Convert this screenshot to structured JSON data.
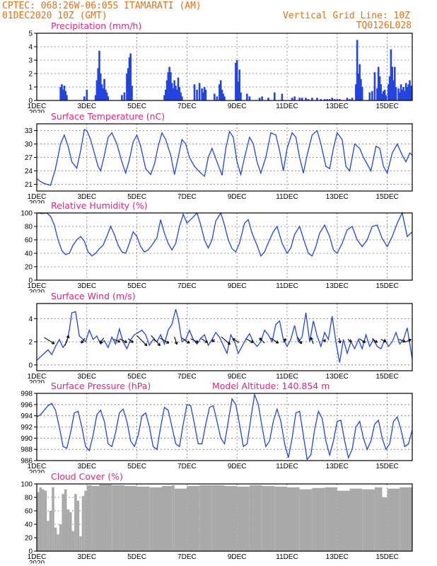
{
  "header": {
    "line1": "CPTEC:   068:26W-06:05S  ITAMARATI (AM)",
    "line2_left": "01DEC2020 10Z (GMT)",
    "line2_right": "Vertical Grid Line: 10Z",
    "line3_right": "TQ0126L028"
  },
  "x_axis": {
    "days": [
      1,
      16
    ],
    "tick_days": [
      1,
      3,
      5,
      7,
      9,
      11,
      13,
      15
    ],
    "tick_labels": [
      "1DEC",
      "3DEC",
      "5DEC",
      "7DEC",
      "9DEC",
      "11DEC",
      "13DEC",
      "15DEC"
    ],
    "year_label": "2020"
  },
  "colors": {
    "header": "#e0701c",
    "panel_title": "#e0267e",
    "series": "#2345dd",
    "cloud": "#a9a9a9",
    "arrow": "#000000"
  },
  "chart_data": [
    {
      "type": "bar",
      "title": "Precipitation (mm/h)",
      "ylim": [
        0,
        5
      ],
      "yticks": [
        0,
        1,
        2,
        3,
        4,
        5
      ],
      "x": [
        1.95,
        2.0,
        2.05,
        2.1,
        2.15,
        2.2,
        2.9,
        3.0,
        3.35,
        3.4,
        3.45,
        3.5,
        3.55,
        3.6,
        3.65,
        3.7,
        3.75,
        3.8,
        3.85,
        4.4,
        4.5,
        4.6,
        4.65,
        4.7,
        4.75,
        4.8,
        6.1,
        6.15,
        6.2,
        6.25,
        6.3,
        6.35,
        6.4,
        6.45,
        6.5,
        6.55,
        6.6,
        6.65,
        6.7,
        6.75,
        6.8,
        7.3,
        7.4,
        7.5,
        7.6,
        7.65,
        7.7,
        7.75,
        8.1,
        8.2,
        8.3,
        8.35,
        8.4,
        8.45,
        8.5,
        8.95,
        9.0,
        9.05,
        9.1,
        9.15,
        9.4,
        9.5,
        9.9,
        10.0,
        10.25,
        10.5,
        10.8,
        11.2,
        11.3,
        11.5,
        11.6,
        11.75,
        11.85,
        12.0,
        12.2,
        12.35,
        12.5,
        12.6,
        12.7,
        12.8,
        12.9,
        13.0,
        13.1,
        13.4,
        13.5,
        13.6,
        13.75,
        13.8,
        13.85,
        13.9,
        13.95,
        14.0,
        14.3,
        14.4,
        14.5,
        14.6,
        14.65,
        14.7,
        14.75,
        14.8,
        14.85,
        14.9,
        14.95,
        15.05,
        15.1,
        15.15,
        15.2,
        15.25,
        15.3,
        15.35,
        15.45,
        15.5,
        15.55,
        15.6,
        15.65,
        15.7,
        15.75,
        15.8,
        15.85,
        15.9,
        15.95
      ],
      "values": [
        1.0,
        1.2,
        0.8,
        1.1,
        0.7,
        0.4,
        0.3,
        0.8,
        0.4,
        1.5,
        2.4,
        3.7,
        2.0,
        1.2,
        0.9,
        1.6,
        0.8,
        0.6,
        0.3,
        0.4,
        0.6,
        2.0,
        2.4,
        3.2,
        3.5,
        1.1,
        0.4,
        0.8,
        1.5,
        2.1,
        2.5,
        2.1,
        1.3,
        0.9,
        1.5,
        1.1,
        0.8,
        1.7,
        1.0,
        0.6,
        0.3,
        1.2,
        0.8,
        1.3,
        0.9,
        0.6,
        1.0,
        0.8,
        0.5,
        0.3,
        1.2,
        1.5,
        0.8,
        0.5,
        0.3,
        2.8,
        3.0,
        1.4,
        2.3,
        0.6,
        0.5,
        0.3,
        0.2,
        0.3,
        0.2,
        0.6,
        0.5,
        0.2,
        0.3,
        0.2,
        0.2,
        0.2,
        0.1,
        0.2,
        0.2,
        0.1,
        0.1,
        0.1,
        0.1,
        0.2,
        0.1,
        0.1,
        0.1,
        0.2,
        0.1,
        0.2,
        1.2,
        4.5,
        2.0,
        2.7,
        1.6,
        1.0,
        0.6,
        0.7,
        2.1,
        0.9,
        2.5,
        1.8,
        1.2,
        0.5,
        0.7,
        0.8,
        0.4,
        1.2,
        1.8,
        3.8,
        2.5,
        1.5,
        2.5,
        1.0,
        0.9,
        0.6,
        1.2,
        0.8,
        1.0,
        0.7,
        1.3,
        1.0,
        1.2,
        1.5,
        1.1
      ]
    },
    {
      "type": "line",
      "title": "Surface Temperature (nC)",
      "ylim": [
        19.5,
        34.5
      ],
      "yticks": [
        21,
        24,
        27,
        30,
        33
      ],
      "x": [
        1.0,
        1.1,
        1.25,
        1.4,
        1.55,
        1.75,
        1.95,
        2.1,
        2.25,
        2.4,
        2.6,
        2.75,
        2.9,
        3.0,
        3.15,
        3.3,
        3.45,
        3.55,
        3.7,
        3.85,
        4.0,
        4.2,
        4.4,
        4.55,
        4.7,
        4.85,
        5.0,
        5.15,
        5.35,
        5.55,
        5.7,
        5.85,
        6.0,
        6.15,
        6.35,
        6.5,
        6.65,
        6.8,
        6.95,
        7.1,
        7.3,
        7.55,
        7.7,
        7.85,
        8.0,
        8.2,
        8.4,
        8.55,
        8.7,
        8.85,
        9.0,
        9.15,
        9.3,
        9.5,
        9.65,
        9.8,
        9.95,
        10.15,
        10.35,
        10.55,
        10.7,
        10.85,
        11.0,
        11.2,
        11.35,
        11.5,
        11.65,
        11.8,
        12.0,
        12.2,
        12.35,
        12.55,
        12.7,
        12.85,
        13.0,
        13.2,
        13.35,
        13.5,
        13.7,
        13.9,
        14.05,
        14.2,
        14.35,
        14.55,
        14.7,
        14.85,
        15.0,
        15.2,
        15.4,
        15.6,
        15.75,
        15.9,
        16.0
      ],
      "values": [
        22.3,
        21.8,
        21.3,
        21.0,
        20.8,
        24.5,
        30.0,
        32.0,
        29.5,
        26.0,
        24.6,
        28.5,
        33.2,
        33.0,
        31.0,
        28.0,
        25.0,
        24.0,
        27.5,
        31.5,
        32.5,
        30.0,
        26.0,
        23.5,
        26.5,
        30.5,
        32.0,
        29.5,
        24.5,
        23.2,
        25.5,
        29.5,
        32.5,
        31.0,
        27.5,
        23.2,
        27.0,
        31.0,
        30.0,
        27.0,
        25.0,
        23.5,
        22.8,
        27.0,
        29.0,
        26.0,
        23.0,
        29.0,
        32.8,
        31.5,
        26.0,
        23.2,
        27.0,
        31.5,
        30.0,
        26.0,
        23.5,
        27.0,
        32.5,
        32.0,
        28.5,
        24.0,
        29.0,
        32.5,
        31.5,
        27.0,
        23.5,
        27.5,
        32.0,
        33.0,
        30.0,
        25.0,
        24.5,
        29.0,
        32.5,
        31.0,
        25.0,
        24.0,
        30.0,
        29.0,
        27.0,
        25.5,
        24.0,
        29.5,
        29.0,
        25.0,
        23.5,
        28.0,
        30.0,
        27.5,
        26.0,
        28.0,
        27.5
      ]
    },
    {
      "type": "line",
      "title": "Relative Humidity (%)",
      "ylim": [
        0,
        100
      ],
      "yticks": [
        0,
        20,
        40,
        60,
        80,
        100
      ],
      "x": [
        1.0,
        1.2,
        1.4,
        1.55,
        1.7,
        1.85,
        2.0,
        2.15,
        2.3,
        2.45,
        2.6,
        2.75,
        2.9,
        3.05,
        3.2,
        3.35,
        3.5,
        3.65,
        3.8,
        3.95,
        4.1,
        4.25,
        4.4,
        4.55,
        4.7,
        4.85,
        5.0,
        5.15,
        5.3,
        5.45,
        5.6,
        5.8,
        5.95,
        6.1,
        6.25,
        6.4,
        6.55,
        6.7,
        6.85,
        7.0,
        7.2,
        7.4,
        7.55,
        7.7,
        7.85,
        8.0,
        8.15,
        8.35,
        8.5,
        8.65,
        8.8,
        8.95,
        9.1,
        9.3,
        9.45,
        9.6,
        9.8,
        9.95,
        10.1,
        10.3,
        10.45,
        10.6,
        10.8,
        11.0,
        11.15,
        11.3,
        11.5,
        11.65,
        11.85,
        12.0,
        12.15,
        12.3,
        12.5,
        12.7,
        12.85,
        13.0,
        13.2,
        13.4,
        13.6,
        13.8,
        14.0,
        14.2,
        14.4,
        14.6,
        14.8,
        15.0,
        15.2,
        15.4,
        15.6,
        15.8,
        16.0
      ],
      "values": [
        100,
        99,
        100,
        95,
        82,
        60,
        44,
        38,
        40,
        52,
        60,
        65,
        58,
        42,
        36,
        40,
        47,
        52,
        65,
        80,
        68,
        52,
        42,
        40,
        55,
        72,
        65,
        50,
        42,
        45,
        52,
        63,
        90,
        70,
        55,
        45,
        55,
        80,
        98,
        85,
        92,
        100,
        82,
        60,
        48,
        60,
        88,
        100,
        82,
        60,
        47,
        42,
        55,
        85,
        90,
        70,
        52,
        36,
        42,
        60,
        72,
        80,
        55,
        40,
        48,
        68,
        80,
        62,
        40,
        36,
        50,
        70,
        82,
        65,
        45,
        40,
        55,
        75,
        80,
        60,
        50,
        60,
        80,
        82,
        62,
        50,
        65,
        85,
        100,
        65,
        72
      ]
    },
    {
      "type": "line",
      "title": "Surface Wind (m/s)",
      "ylim": [
        -0.5,
        5.3
      ],
      "yticks": [
        0,
        2,
        4
      ],
      "x": [
        1.0,
        1.15,
        1.3,
        1.45,
        1.6,
        1.75,
        1.9,
        2.05,
        2.2,
        2.3,
        2.4,
        2.55,
        2.7,
        2.85,
        2.95,
        3.1,
        3.25,
        3.4,
        3.55,
        3.7,
        3.85,
        4.0,
        4.15,
        4.3,
        4.45,
        4.6,
        4.75,
        4.9,
        5.05,
        5.2,
        5.35,
        5.5,
        5.65,
        5.8,
        5.95,
        6.1,
        6.25,
        6.4,
        6.55,
        6.65,
        6.8,
        6.95,
        7.1,
        7.25,
        7.4,
        7.55,
        7.7,
        7.85,
        8.0,
        8.15,
        8.3,
        8.45,
        8.6,
        8.75,
        8.9,
        9.05,
        9.2,
        9.35,
        9.5,
        9.65,
        9.8,
        9.95,
        10.1,
        10.25,
        10.4,
        10.55,
        10.7,
        10.85,
        11.0,
        11.15,
        11.3,
        11.45,
        11.6,
        11.75,
        11.9,
        12.05,
        12.2,
        12.35,
        12.5,
        12.65,
        12.8,
        12.95,
        13.1,
        13.25,
        13.4,
        13.55,
        13.7,
        13.85,
        14.0,
        14.15,
        14.3,
        14.45,
        14.6,
        14.75,
        14.9,
        15.05,
        15.2,
        15.35,
        15.5,
        15.65,
        15.8,
        16.0
      ],
      "values": [
        0.4,
        0.7,
        1.0,
        1.3,
        0.9,
        1.6,
        2.2,
        1.5,
        2.0,
        3.0,
        4.5,
        4.6,
        2.5,
        2.2,
        2.0,
        3.0,
        2.2,
        2.5,
        1.8,
        2.1,
        1.5,
        2.4,
        1.8,
        3.1,
        2.0,
        1.4,
        2.2,
        2.6,
        2.8,
        3.0,
        2.6,
        1.7,
        2.2,
        2.0,
        2.6,
        1.8,
        3.0,
        3.5,
        4.8,
        4.0,
        2.0,
        2.2,
        3.0,
        2.2,
        1.8,
        2.3,
        2.6,
        1.7,
        2.2,
        2.8,
        2.4,
        1.7,
        1.0,
        2.6,
        2.0,
        1.0,
        1.6,
        2.2,
        2.7,
        2.0,
        1.6,
        2.0,
        3.0,
        2.6,
        2.0,
        3.5,
        3.8,
        2.2,
        1.6,
        2.2,
        3.4,
        2.0,
        2.4,
        4.5,
        2.0,
        3.8,
        2.5,
        1.6,
        2.8,
        2.2,
        4.2,
        2.0,
        0.2,
        2.2,
        1.0,
        2.0,
        1.4,
        2.2,
        1.4,
        2.6,
        1.6,
        2.2,
        1.6,
        1.4,
        2.2,
        1.6,
        2.0,
        2.8,
        1.8,
        2.2,
        3.2,
        0.5
      ],
      "vectors": {
        "x": [
          1.5,
          2.2,
          2.85,
          3.6,
          4.2,
          4.45,
          4.75,
          5.2,
          5.75,
          6.1,
          6.55,
          6.95,
          7.3,
          7.7,
          8.05,
          8.55,
          8.95,
          9.5,
          10.0,
          10.5,
          10.9,
          11.5,
          12.0,
          12.5,
          13.1,
          13.5,
          14.0,
          14.5,
          14.85,
          15.6,
          15.85
        ],
        "u": [
          0.8,
          0.3,
          -0.3,
          -0.3,
          0.5,
          0.6,
          0.4,
          0.8,
          0.7,
          0.7,
          0.2,
          0.6,
          0.6,
          0.5,
          -0.2,
          0.7,
          -0.5,
          0.6,
          -0.4,
          0.6,
          0.2,
          0.3,
          -0.2,
          0.1,
          0.1,
          0.3,
          0.5,
          0.4,
          0.4,
          0.5,
          0.4
        ],
        "v": [
          -0.5,
          0.8,
          -0.4,
          -0.4,
          -0.2,
          -0.3,
          -0.3,
          -0.8,
          -0.8,
          -0.4,
          -0.6,
          -0.4,
          -0.3,
          -0.3,
          -0.2,
          -0.6,
          0.3,
          -0.3,
          0.4,
          -0.4,
          0.3,
          -0.5,
          0.5,
          0.2,
          -0.4,
          -0.2,
          -0.3,
          -0.3,
          -0.2,
          -0.2,
          0.2
        ]
      }
    },
    {
      "type": "line",
      "title": "Surface Pressure (hPa)",
      "annotation": "Model Altitude: 140.854 m",
      "ylim": [
        986,
        998
      ],
      "yticks": [
        986,
        988,
        990,
        992,
        994,
        996,
        998
      ],
      "x": [
        1.0,
        1.15,
        1.3,
        1.45,
        1.6,
        1.75,
        1.9,
        2.05,
        2.2,
        2.35,
        2.5,
        2.65,
        2.8,
        2.95,
        3.1,
        3.25,
        3.4,
        3.55,
        3.7,
        3.85,
        4.0,
        4.15,
        4.3,
        4.45,
        4.6,
        4.75,
        4.9,
        5.05,
        5.2,
        5.35,
        5.5,
        5.65,
        5.8,
        5.95,
        6.1,
        6.25,
        6.4,
        6.55,
        6.7,
        6.85,
        7.0,
        7.15,
        7.3,
        7.45,
        7.6,
        7.75,
        7.9,
        8.05,
        8.2,
        8.35,
        8.5,
        8.65,
        8.8,
        8.95,
        9.1,
        9.25,
        9.4,
        9.55,
        9.7,
        9.85,
        10.0,
        10.15,
        10.3,
        10.45,
        10.6,
        10.75,
        10.9,
        11.05,
        11.2,
        11.35,
        11.5,
        11.65,
        11.8,
        11.95,
        12.1,
        12.25,
        12.4,
        12.55,
        12.7,
        12.85,
        13.0,
        13.15,
        13.3,
        13.45,
        13.6,
        13.75,
        13.9,
        14.05,
        14.2,
        14.35,
        14.5,
        14.65,
        14.8,
        14.95,
        15.1,
        15.25,
        15.4,
        15.55,
        15.7,
        15.85,
        16.0
      ],
      "values": [
        993.8,
        994.2,
        995.0,
        995.8,
        996.2,
        995.0,
        992.0,
        988.5,
        988.2,
        991.0,
        994.5,
        994.8,
        992.0,
        988.5,
        987.8,
        990.5,
        994.2,
        995.0,
        993.0,
        989.0,
        988.5,
        991.0,
        994.5,
        995.2,
        993.0,
        989.5,
        988.5,
        990.5,
        994.0,
        994.5,
        992.0,
        988.5,
        988.0,
        992.0,
        995.5,
        995.0,
        992.0,
        989.0,
        988.5,
        992.5,
        996.0,
        995.8,
        992.5,
        989.0,
        989.0,
        992.5,
        995.5,
        995.8,
        993.0,
        990.0,
        989.0,
        993.0,
        997.0,
        996.0,
        992.5,
        988.5,
        989.0,
        993.5,
        997.8,
        996.0,
        992.0,
        988.5,
        989.5,
        993.0,
        995.2,
        993.0,
        989.0,
        986.5,
        990.0,
        994.5,
        994.8,
        990.5,
        986.2,
        987.0,
        991.5,
        994.8,
        993.5,
        989.5,
        987.0,
        989.5,
        993.0,
        993.2,
        989.5,
        986.5,
        988.0,
        992.0,
        993.0,
        990.0,
        988.0,
        989.5,
        992.5,
        993.2,
        990.0,
        988.0,
        989.0,
        993.0,
        993.8,
        991.5,
        988.5,
        989.0,
        991.5
      ]
    },
    {
      "type": "bar",
      "title": "Cloud Cover (%)",
      "ylim": [
        0,
        100
      ],
      "yticks": [
        0,
        20,
        40,
        60,
        80,
        100
      ],
      "x": [
        1.0,
        1.1,
        1.2,
        1.3,
        1.4,
        1.5,
        1.6,
        1.7,
        1.8,
        1.9,
        2.0,
        2.1,
        2.2,
        2.3,
        2.4,
        2.5,
        2.6,
        2.7,
        2.8,
        2.9,
        3.0,
        3.2,
        3.5,
        4.0,
        4.5,
        5.0,
        5.5,
        6.0,
        6.4,
        6.5,
        7.0,
        7.5,
        8.0,
        8.5,
        9.0,
        9.5,
        10.0,
        10.5,
        11.0,
        11.5,
        12.0,
        12.5,
        13.0,
        13.5,
        14.0,
        14.5,
        14.8,
        15.0,
        15.5,
        16.0
      ],
      "values": [
        88,
        95,
        92,
        90,
        45,
        60,
        95,
        35,
        25,
        40,
        85,
        92,
        62,
        58,
        30,
        85,
        75,
        22,
        82,
        90,
        98,
        97,
        99,
        98,
        97,
        96,
        95,
        97,
        98,
        93,
        97,
        98,
        98,
        97,
        96,
        98,
        97,
        96,
        95,
        92,
        94,
        95,
        90,
        93,
        92,
        95,
        80,
        93,
        95,
        97
      ]
    }
  ]
}
